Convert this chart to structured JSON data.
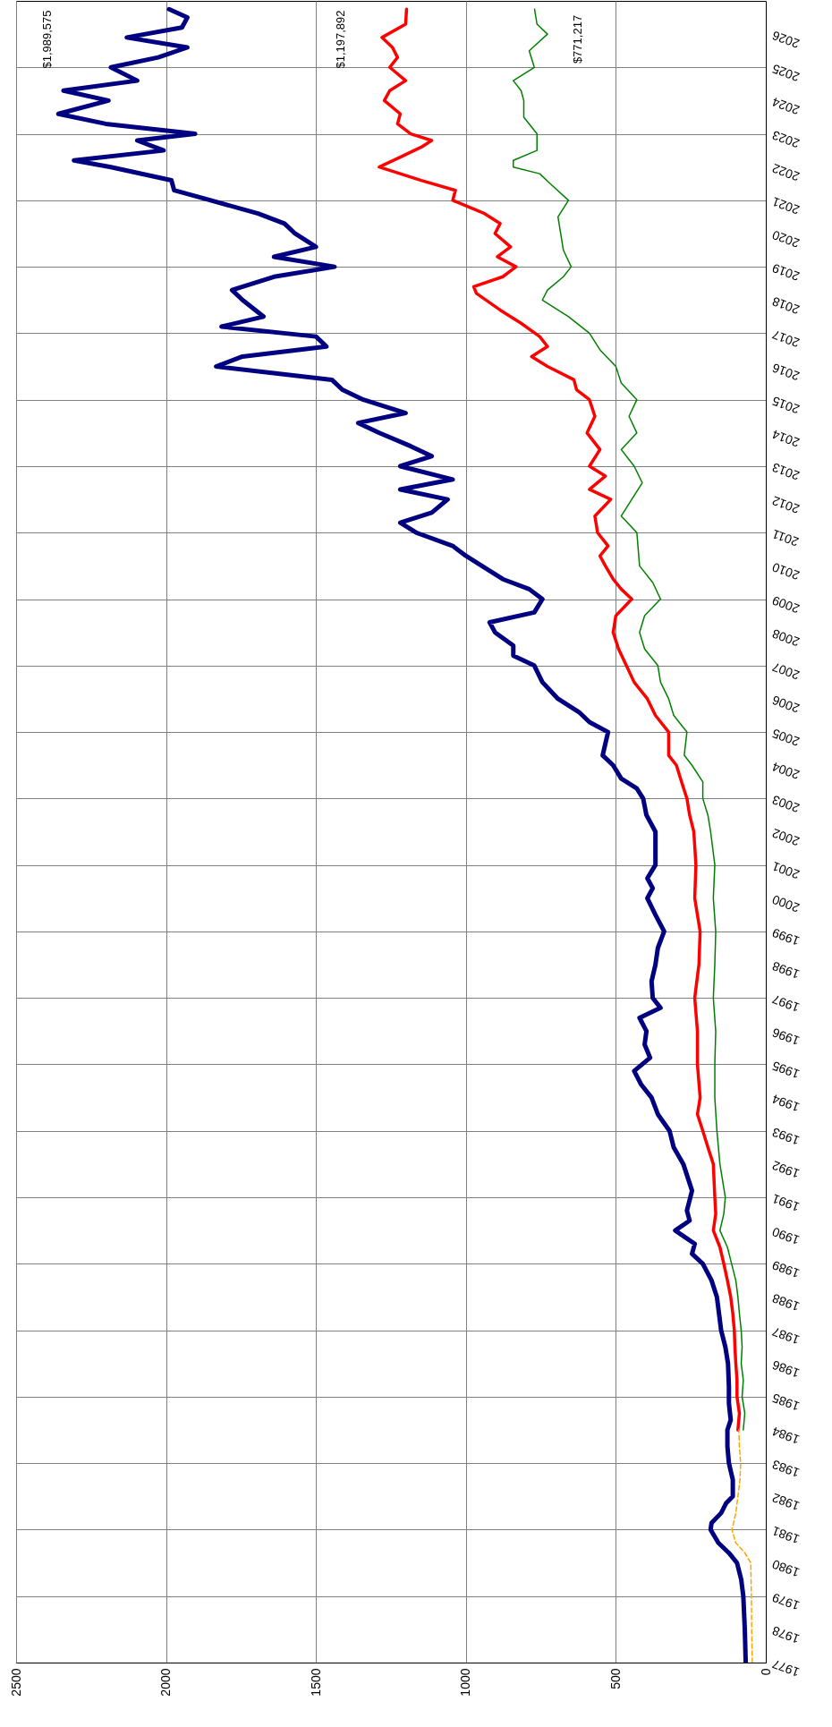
{
  "chart_data": {
    "type": "line",
    "orientation": "horizontal",
    "xlim": [
      2500,
      0
    ],
    "xticks": [
      2500,
      2000,
      1500,
      1000,
      500,
      0
    ],
    "ylim": [
      1977,
      2027
    ],
    "yticks": [
      1977,
      1978,
      1979,
      1980,
      1981,
      1982,
      1983,
      1984,
      1985,
      1986,
      1987,
      1988,
      1989,
      1990,
      1991,
      1992,
      1993,
      1994,
      1995,
      1996,
      1997,
      1998,
      1999,
      2000,
      2001,
      2002,
      2003,
      2004,
      2005,
      2006,
      2007,
      2008,
      2009,
      2010,
      2011,
      2012,
      2013,
      2014,
      2015,
      2016,
      2017,
      2018,
      2019,
      2020,
      2021,
      2022,
      2023,
      2024,
      2025,
      2026
    ],
    "grid": true,
    "series": [
      {
        "color": "#000080",
        "x": [
          1977,
          1978,
          1979,
          1979.5,
          1980,
          1980.3,
          1980.6,
          1981,
          1981.2,
          1981.5,
          1981.8,
          1982,
          1982.5,
          1983,
          1983.5,
          1984,
          1984.3,
          1984.8,
          1985.3,
          1986,
          1986.5,
          1987,
          1987.5,
          1988,
          1988.5,
          1989,
          1989.3,
          1989.6,
          1990,
          1990.3,
          1990.6,
          1991.2,
          1992,
          1992.5,
          1993,
          1993.5,
          1994,
          1994.4,
          1994.8,
          1995.2,
          1995.6,
          1996,
          1996.4,
          1996.7,
          1997,
          1997.5,
          1998,
          1998.5,
          1999,
          1999.5,
          2000,
          2000.3,
          2000.6,
          2001,
          2001.5,
          2002,
          2002.5,
          2003,
          2003.3,
          2003.6,
          2004,
          2004.3,
          2005,
          2005.3,
          2005.6,
          2006,
          2006.5,
          2007,
          2007.3,
          2007.6,
          2008,
          2008.3,
          2008.6,
          2009,
          2009.3,
          2009.6,
          2010,
          2010.3,
          2010.6,
          2011,
          2011.3,
          2011.6,
          2012,
          2012.3,
          2012.6,
          2013,
          2013.3,
          2013.6,
          2014,
          2014.3,
          2014.6,
          2015,
          2015.3,
          2015.6,
          2016,
          2016.3,
          2016.6,
          2016.9,
          2017.2,
          2017.5,
          2018,
          2018.3,
          2018.7,
          2019,
          2019.3,
          2019.6,
          2020,
          2020.3,
          2020.6,
          2021,
          2021.3,
          2021.6,
          2022,
          2022.2,
          2022.5,
          2022.8,
          2023,
          2023.3,
          2023.6,
          2024,
          2024.3,
          2024.6,
          2025,
          2025.3,
          2025.6,
          2025.9,
          2026.2,
          2026.5,
          2026.75
        ],
        "values": [
          67,
          70,
          75,
          82,
          96,
          123,
          158,
          184,
          181,
          149,
          132,
          110,
          110,
          123,
          128,
          128,
          117,
          123,
          123,
          126,
          135,
          149,
          156,
          163,
          181,
          210,
          246,
          237,
          302,
          254,
          263,
          246,
          275,
          307,
          321,
          360,
          381,
          416,
          439,
          386,
          404,
          398,
          421,
          351,
          377,
          381,
          368,
          360,
          339,
          368,
          395,
          377,
          395,
          368,
          368,
          368,
          398,
          409,
          430,
          482,
          509,
          544,
          526,
          588,
          623,
          693,
          745,
          772,
          842,
          842,
          903,
          921,
          772,
          745,
          789,
          877,
          947,
          1000,
          1044,
          1166,
          1219,
          1114,
          1061,
          1219,
          1044,
          1219,
          1114,
          1184,
          1289,
          1359,
          1201,
          1342,
          1412,
          1447,
          1833,
          1745,
          1465,
          1500,
          1815,
          1675,
          1745,
          1780,
          1640,
          1438,
          1640,
          1500,
          1570,
          1605,
          1693,
          1851,
          1973,
          1982,
          2184,
          2307,
          2008,
          2096,
          1903,
          2201,
          2359,
          2192,
          2342,
          2096,
          2184,
          2026,
          1929,
          2131,
          1947,
          1929,
          1990
        ]
      },
      {
        "color": "#ff0000",
        "x": [
          1984,
          1984.5,
          1985,
          1985.5,
          1986,
          1986.5,
          1987,
          1987.5,
          1988,
          1988.5,
          1989,
          1989.5,
          1990,
          1990.5,
          1991,
          1992,
          1992.5,
          1993,
          1993.5,
          1994,
          1995,
          1996,
          1997,
          1998,
          1999,
          2000,
          2001,
          2002,
          2002.5,
          2003,
          2003.5,
          2004,
          2004.3,
          2005,
          2005.5,
          2006,
          2006.5,
          2007,
          2007.5,
          2008,
          2008.5,
          2009,
          2009.3,
          2009.6,
          2010,
          2010.3,
          2010.6,
          2011,
          2011.5,
          2012,
          2012.3,
          2012.7,
          2013,
          2013.5,
          2014,
          2014.5,
          2015,
          2015.3,
          2015.6,
          2016,
          2016.3,
          2016.6,
          2016.9,
          2017.3,
          2017.7,
          2018.2,
          2018.4,
          2018.7,
          2019,
          2019.3,
          2019.6,
          2020,
          2020.3,
          2020.6,
          2021,
          2021.3,
          2021.6,
          2022,
          2022.3,
          2022.6,
          2022.8,
          2023,
          2023.3,
          2023.6,
          2024,
          2024.3,
          2024.6,
          2025,
          2025.3,
          2025.6,
          2025.9,
          2026.3,
          2026.75
        ],
        "values": [
          93,
          88,
          96,
          96,
          100,
          103,
          105,
          110,
          117,
          128,
          140,
          153,
          175,
          167,
          170,
          175,
          193,
          210,
          228,
          219,
          228,
          228,
          237,
          223,
          219,
          237,
          233,
          240,
          254,
          263,
          281,
          298,
          324,
          324,
          368,
          395,
          439,
          465,
          491,
          509,
          500,
          447,
          482,
          509,
          535,
          553,
          526,
          561,
          570,
          517,
          588,
          535,
          588,
          553,
          596,
          570,
          588,
          631,
          640,
          728,
          781,
          728,
          754,
          816,
          886,
          965,
          974,
          877,
          833,
          895,
          851,
          903,
          886,
          938,
          1044,
          1035,
          1149,
          1289,
          1219,
          1149,
          1114,
          1184,
          1228,
          1219,
          1272,
          1254,
          1201,
          1254,
          1228,
          1245,
          1280,
          1201,
          1198
        ]
      },
      {
        "color": "#008000",
        "x": [
          1984,
          1984.5,
          1985,
          1985.5,
          1986,
          1986.5,
          1987,
          1987.5,
          1988,
          1988.5,
          1989,
          1989.5,
          1990,
          1990.5,
          1991,
          1992,
          1993,
          1994,
          1995,
          1996,
          1997,
          1998,
          1999,
          2000,
          2001,
          2002,
          2002.5,
          2003,
          2003.5,
          2004,
          2004.3,
          2005,
          2005.5,
          2006,
          2006.5,
          2007,
          2007.5,
          2008,
          2008.5,
          2009,
          2009.5,
          2010,
          2011,
          2011.5,
          2012,
          2012.5,
          2013,
          2013.5,
          2014,
          2014.5,
          2015,
          2015.5,
          2016,
          2016.5,
          2017,
          2017.5,
          2018,
          2018.3,
          2018.7,
          2019,
          2019.5,
          2020,
          2020.5,
          2021,
          2021.5,
          2021.8,
          2022,
          2022.2,
          2022.5,
          2023,
          2023.5,
          2024,
          2024.3,
          2024.6,
          2025,
          2025.5,
          2026,
          2026.3,
          2026.75
        ],
        "values": [
          75,
          70,
          79,
          75,
          82,
          79,
          82,
          88,
          93,
          100,
          114,
          128,
          153,
          140,
          135,
          153,
          163,
          170,
          170,
          167,
          175,
          170,
          167,
          175,
          170,
          184,
          193,
          210,
          210,
          246,
          272,
          263,
          307,
          324,
          351,
          360,
          404,
          421,
          404,
          351,
          377,
          421,
          430,
          482,
          447,
          412,
          439,
          482,
          430,
          456,
          430,
          482,
          500,
          553,
          588,
          658,
          745,
          728,
          675,
          649,
          675,
          684,
          693,
          658,
          719,
          754,
          842,
          842,
          763,
          763,
          807,
          807,
          816,
          842,
          772,
          789,
          728,
          763,
          771
        ]
      },
      {
        "color": "#ffa500",
        "line_style": "dashed",
        "x": [
          1977,
          1978,
          1979,
          1980,
          1980.3,
          1980.6,
          1981,
          1981.5,
          1982,
          1982.5,
          1983,
          1983.5,
          1984
        ],
        "values": [
          45,
          47,
          48,
          50,
          70,
          100,
          113,
          100,
          93,
          86,
          84,
          88,
          90
        ]
      }
    ],
    "annotations": [
      "$1,989,575",
      "$1,197,892",
      "$771,217"
    ]
  }
}
